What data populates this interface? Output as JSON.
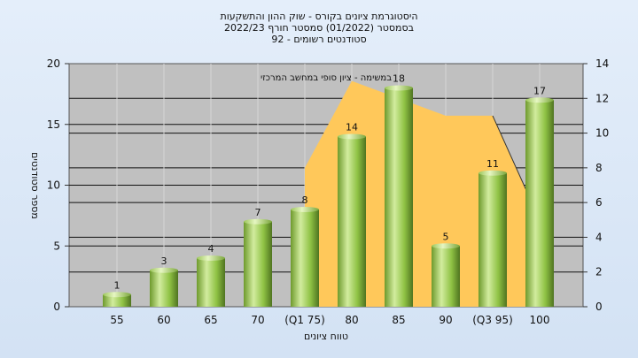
{
  "chart_data": {
    "type": "bar",
    "title_lines": [
      "היסטוגרמת ציונים בקורס - שוק ההון והתשקעות",
      "בסמסטר  (01/2022)  סמסטר חורף  2022/23",
      "סטודנטים רשומים - 92"
    ],
    "categories": [
      "55",
      "60",
      "65",
      "70",
      "(Q1 75)",
      "80",
      "85",
      "90",
      "(Q3 95)",
      "100"
    ],
    "values": [
      1,
      3,
      4,
      7,
      8,
      14,
      18,
      5,
      11,
      17
    ],
    "xlabel": "טווח ציונים",
    "ylabel": "מספר סטודנטים",
    "ylim": [
      0,
      20
    ],
    "yticks": [
      0,
      5,
      10,
      15,
      20
    ],
    "y2lim": [
      0,
      14
    ],
    "y2ticks": [
      0,
      2,
      4,
      6,
      8,
      10,
      12,
      14
    ],
    "overlay": {
      "type": "area",
      "label": "במשימה - ציון סופי במחשב המרכזי",
      "points": [
        [
          4,
          8
        ],
        [
          5,
          13
        ],
        [
          7,
          11
        ],
        [
          8,
          11
        ],
        [
          9,
          5
        ]
      ],
      "color": "#ffc85a"
    },
    "bar_color": "#8fc244",
    "plot_background": "#c0c0c0",
    "grid": true
  }
}
